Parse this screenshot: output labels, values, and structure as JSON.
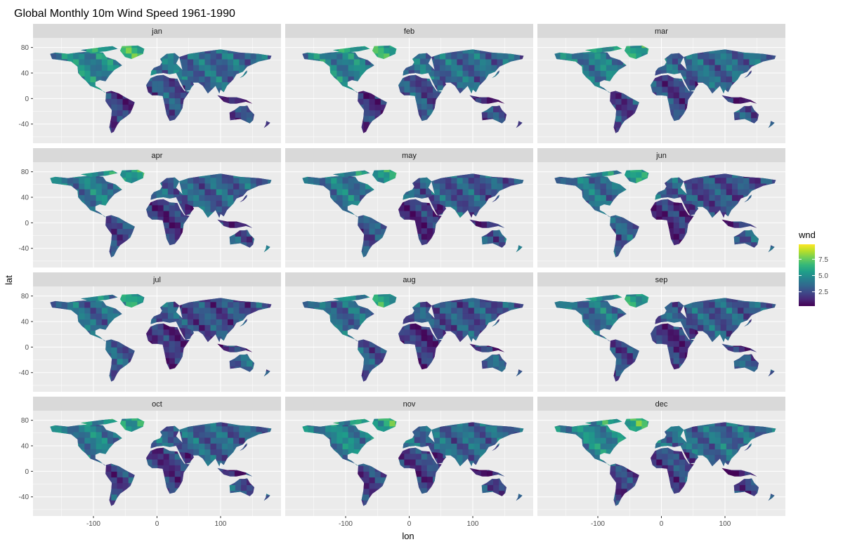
{
  "title": "Global Monthly 10m Wind Speed 1961-1990",
  "chart_data": {
    "type": "heatmap",
    "title": "Global Monthly 10m Wind Speed 1961-1990",
    "facet_layout": {
      "rows": 4,
      "cols": 3
    },
    "panels": [
      "jan",
      "feb",
      "mar",
      "apr",
      "may",
      "jun",
      "jul",
      "aug",
      "sep",
      "oct",
      "nov",
      "dec"
    ],
    "xlabel": "lon",
    "ylabel": "lat",
    "x_ticks": [
      -100,
      0,
      100
    ],
    "y_ticks": [
      80,
      40,
      0,
      -40
    ],
    "xlim": [
      -195,
      195
    ],
    "ylim": [
      -70,
      95
    ],
    "legend": {
      "title": "wnd",
      "ticks": [
        "7.5",
        "5.0",
        "2.5"
      ],
      "tick_values": [
        7.5,
        5.0,
        2.5
      ],
      "range": [
        0.3,
        9.8
      ],
      "position": "right",
      "colormap": "viridis"
    },
    "grid": true
  },
  "colors": {
    "panel_bg": "#ebebeb",
    "strip_bg": "#d9d9d9",
    "grid": "#ffffff",
    "viridis": [
      "#440154",
      "#482878",
      "#3e4989",
      "#31688e",
      "#26828e",
      "#1f9e89",
      "#35b779",
      "#6ece58",
      "#b5de2b",
      "#fde725"
    ]
  }
}
